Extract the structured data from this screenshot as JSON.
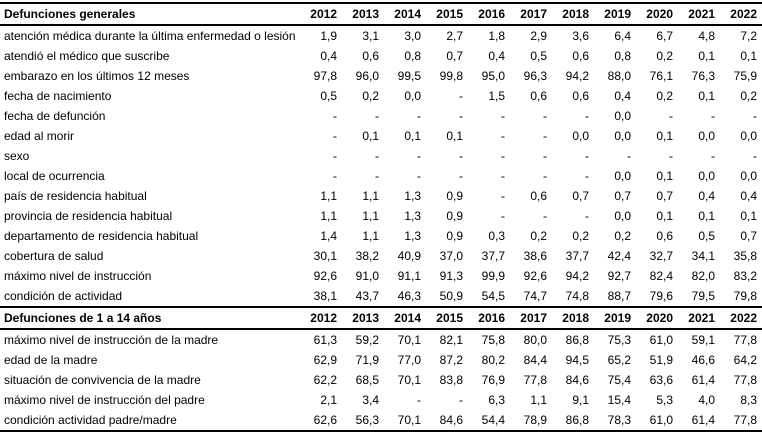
{
  "colors": {
    "text": "#000000",
    "background": "#ffffff",
    "border": "#000000"
  },
  "table": {
    "years": [
      "2012",
      "2013",
      "2014",
      "2015",
      "2016",
      "2017",
      "2018",
      "2019",
      "2020",
      "2021",
      "2022"
    ],
    "sections": [
      {
        "header": "Defunciones generales",
        "rows": [
          {
            "label": "atención médica durante la última enfermedad o lesión",
            "values": [
              "1,9",
              "3,1",
              "3,0",
              "2,7",
              "1,8",
              "2,9",
              "3,6",
              "6,4",
              "6,7",
              "4,8",
              "7,2"
            ]
          },
          {
            "label": "atendió el médico que suscribe",
            "values": [
              "0,4",
              "0,6",
              "0,8",
              "0,7",
              "0,4",
              "0,5",
              "0,6",
              "0,8",
              "0,2",
              "0,1",
              "0,1"
            ]
          },
          {
            "label": "embarazo en los últimos 12 meses",
            "values": [
              "97,8",
              "96,0",
              "99,5",
              "99,8",
              "95,0",
              "96,3",
              "94,2",
              "88,0",
              "76,1",
              "76,3",
              "75,9"
            ]
          },
          {
            "label": "fecha de nacimiento",
            "values": [
              "0,5",
              "0,2",
              "0,0",
              "-",
              "1,5",
              "0,6",
              "0,6",
              "0,4",
              "0,2",
              "0,1",
              "0,2"
            ]
          },
          {
            "label": "fecha de defunción",
            "values": [
              "-",
              "-",
              "-",
              "-",
              "-",
              "-",
              "-",
              "0,0",
              "-",
              "-",
              "-"
            ]
          },
          {
            "label": "edad al morir",
            "values": [
              "-",
              "0,1",
              "0,1",
              "0,1",
              "-",
              "-",
              "0,0",
              "0,0",
              "0,1",
              "0,0",
              "0,0"
            ]
          },
          {
            "label": "sexo",
            "values": [
              "-",
              "-",
              "-",
              "-",
              "-",
              "-",
              "-",
              "-",
              "-",
              "-",
              "-"
            ]
          },
          {
            "label": "local de ocurrencia",
            "values": [
              "-",
              "-",
              "-",
              "-",
              "-",
              "-",
              "-",
              "0,0",
              "0,1",
              "0,0",
              "0,0"
            ]
          },
          {
            "label": "país de residencia habitual",
            "values": [
              "1,1",
              "1,1",
              "1,3",
              "0,9",
              "-",
              "0,6",
              "0,7",
              "0,7",
              "0,7",
              "0,4",
              "0,4"
            ]
          },
          {
            "label": "provincia de residencia habitual",
            "values": [
              "1,1",
              "1,1",
              "1,3",
              "0,9",
              "-",
              "-",
              "-",
              "0,0",
              "0,1",
              "0,1",
              "0,1"
            ]
          },
          {
            "label": "departamento de residencia habitual",
            "values": [
              "1,4",
              "1,1",
              "1,3",
              "0,9",
              "0,3",
              "0,2",
              "0,2",
              "0,2",
              "0,6",
              "0,5",
              "0,7"
            ]
          },
          {
            "label": "cobertura de salud",
            "values": [
              "30,1",
              "38,2",
              "40,9",
              "37,0",
              "37,7",
              "38,6",
              "37,7",
              "42,4",
              "32,7",
              "34,1",
              "35,8"
            ]
          },
          {
            "label": "máximo nivel de instrucción",
            "values": [
              "92,6",
              "91,0",
              "91,1",
              "91,3",
              "99,9",
              "92,6",
              "94,2",
              "92,7",
              "82,4",
              "82,0",
              "83,2"
            ]
          },
          {
            "label": "condición de actividad",
            "values": [
              "38,1",
              "43,7",
              "46,3",
              "50,9",
              "54,5",
              "74,7",
              "74,8",
              "88,7",
              "79,6",
              "79,5",
              "79,8"
            ]
          }
        ]
      },
      {
        "header": "Defunciones de 1 a 14 años",
        "rows": [
          {
            "label": "máximo nivel de instrucción de la madre",
            "values": [
              "61,3",
              "59,2",
              "70,1",
              "82,1",
              "75,8",
              "80,0",
              "86,8",
              "75,3",
              "61,0",
              "59,1",
              "77,8"
            ]
          },
          {
            "label": "edad de la madre",
            "values": [
              "62,9",
              "71,9",
              "77,0",
              "87,2",
              "80,2",
              "84,4",
              "94,5",
              "65,2",
              "51,9",
              "46,6",
              "64,2"
            ]
          },
          {
            "label": "situación de convivencia de la madre",
            "values": [
              "62,2",
              "68,5",
              "70,1",
              "83,8",
              "76,9",
              "77,8",
              "84,6",
              "75,4",
              "63,6",
              "61,4",
              "77,8"
            ]
          },
          {
            "label": "máximo nivel de instrucción del padre",
            "values": [
              "2,1",
              "3,4",
              "-",
              "-",
              "6,3",
              "1,1",
              "9,1",
              "15,4",
              "5,3",
              "4,0",
              "8,3"
            ]
          },
          {
            "label": "condición actividad padre/madre",
            "values": [
              "62,6",
              "56,3",
              "70,1",
              "84,6",
              "54,4",
              "78,9",
              "86,8",
              "78,3",
              "61,0",
              "61,4",
              "77,8"
            ]
          }
        ]
      }
    ]
  }
}
